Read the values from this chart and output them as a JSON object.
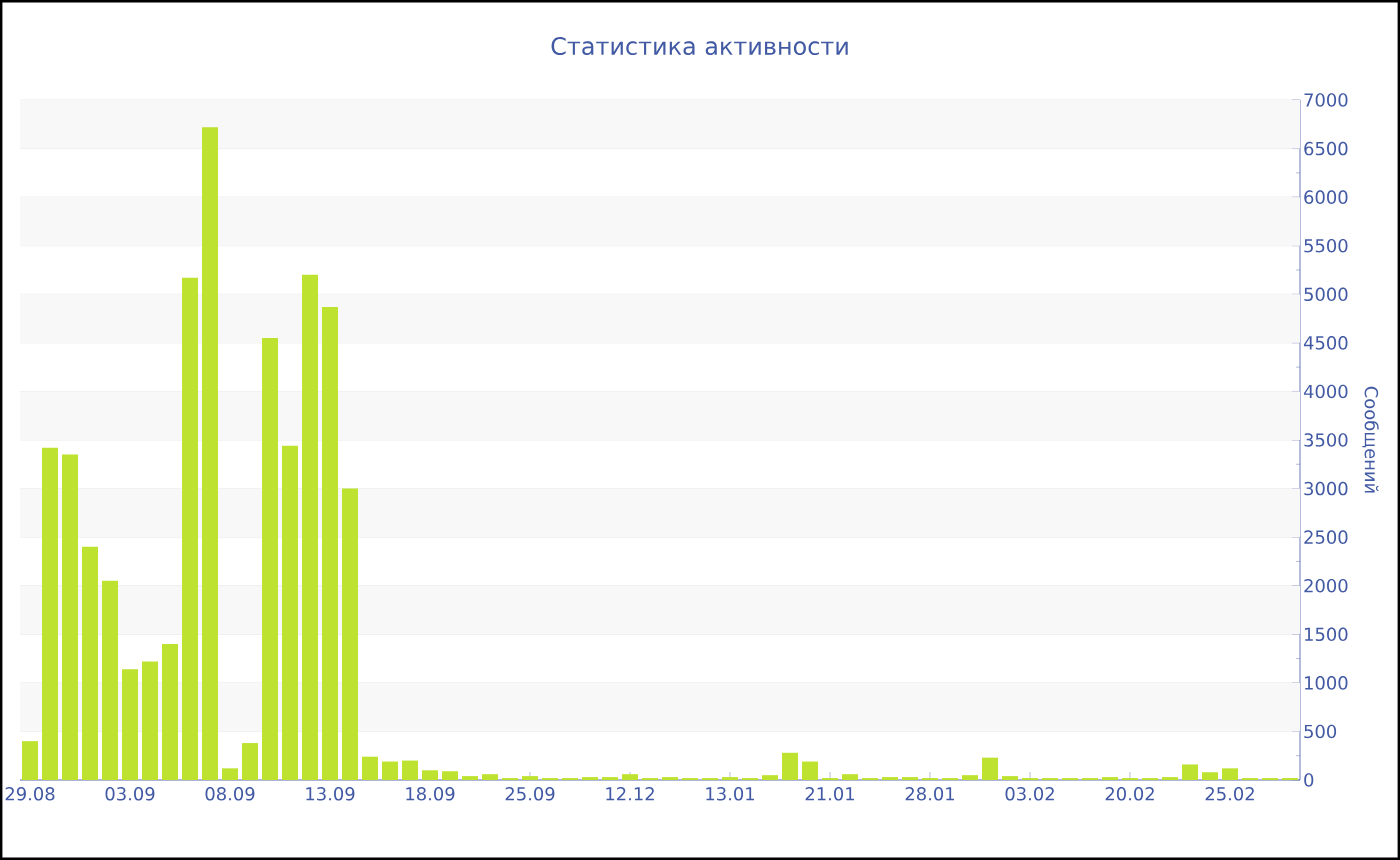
{
  "chart_data": {
    "type": "bar",
    "title": "Статистика активности",
    "ylabel": "Сообщений",
    "categories": [
      "29.08",
      null,
      null,
      null,
      null,
      "03.09",
      null,
      null,
      null,
      null,
      "08.09",
      null,
      null,
      null,
      null,
      "13.09",
      null,
      null,
      null,
      null,
      "18.09",
      null,
      null,
      null,
      null,
      "25.09",
      null,
      null,
      null,
      null,
      "12.12",
      null,
      null,
      null,
      null,
      "13.01",
      null,
      null,
      null,
      null,
      "21.01",
      null,
      null,
      null,
      null,
      "28.01",
      null,
      null,
      null,
      null,
      "03.02",
      null,
      null,
      null,
      null,
      "20.02",
      null,
      null,
      null,
      null,
      "25.02",
      null,
      null,
      null
    ],
    "values": [
      400,
      3420,
      3350,
      2400,
      2050,
      1140,
      1220,
      1400,
      5170,
      6720,
      120,
      380,
      4550,
      3440,
      5200,
      4870,
      3000,
      240,
      190,
      200,
      100,
      90,
      40,
      60,
      20,
      40,
      20,
      20,
      30,
      30,
      60,
      20,
      30,
      20,
      20,
      30,
      20,
      50,
      280,
      190,
      20,
      60,
      20,
      30,
      30,
      20,
      20,
      50,
      230,
      40,
      20,
      20,
      20,
      20,
      30,
      20,
      20,
      30,
      160,
      80,
      120,
      20,
      20,
      20
    ],
    "color": "#bde22f",
    "ylim": [
      0,
      7000
    ],
    "yticks": [
      0,
      500,
      1000,
      1500,
      2000,
      2500,
      3000,
      3500,
      4000,
      4500,
      5000,
      5500,
      6000,
      6500,
      7000
    ],
    "grid": "y"
  }
}
